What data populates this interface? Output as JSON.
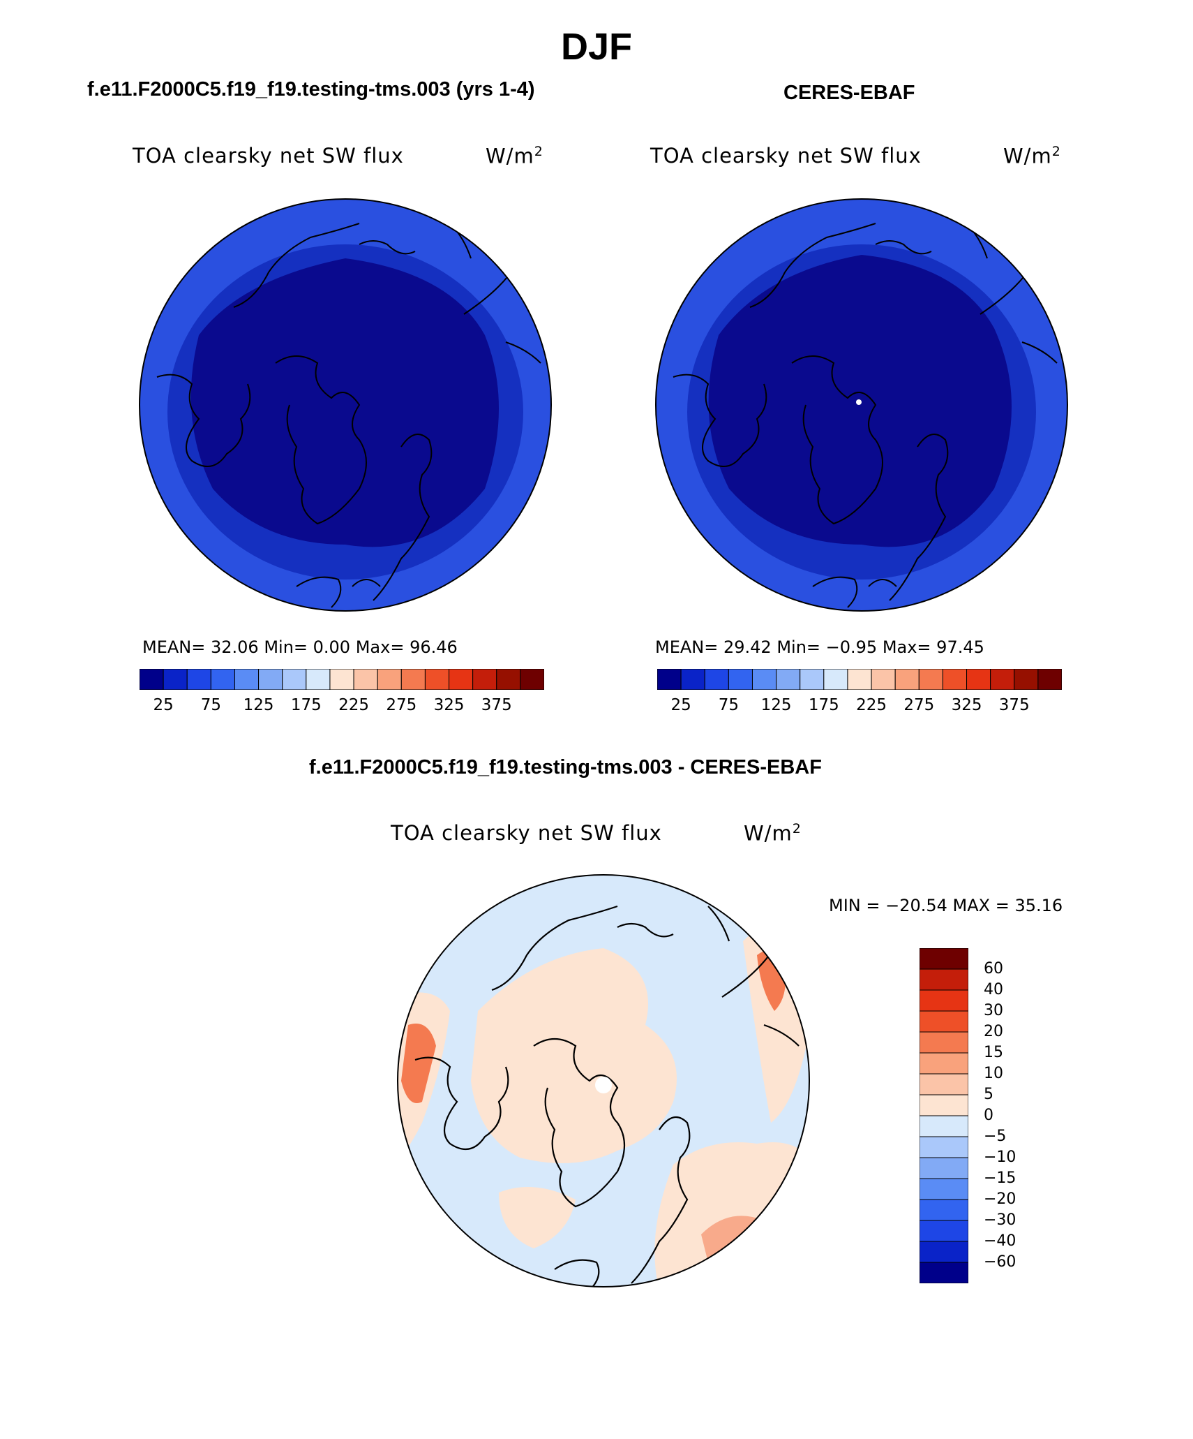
{
  "figure": {
    "title": "DJF",
    "panels": [
      {
        "title": "f.e11.F2000C5.f19_f19.testing-tms.003 (yrs 1-4)",
        "variable": "TOA clearsky net SW flux",
        "units": "W/m",
        "units_exp": "2",
        "stats": "MEAN=   32.06   Min=     0.00   Max=   96.46"
      },
      {
        "title": "CERES-EBAF",
        "variable": "TOA clearsky net SW flux",
        "units": "W/m",
        "units_exp": "2",
        "stats": "MEAN=   29.42   Min=   −0.95   Max=   97.45"
      },
      {
        "title": "f.e11.F2000C5.f19_f19.testing-tms.003 - CERES-EBAF",
        "variable": "TOA clearsky net SW flux",
        "units": "W/m",
        "units_exp": "2",
        "stats": "MIN = −20.54  MAX =   35.16"
      }
    ]
  },
  "colorbars": {
    "abs": {
      "colors": [
        "#00008a",
        "#0a23c8",
        "#1e46e6",
        "#3264f0",
        "#5a8cf5",
        "#82aaf5",
        "#aac8fa",
        "#d7e9fb",
        "#fde4d2",
        "#fbc4a8",
        "#f9a27c",
        "#f47a50",
        "#ee5028",
        "#e63414",
        "#c41e0a",
        "#961000",
        "#6e0000"
      ],
      "ticks": [
        "25",
        "75",
        "125",
        "175",
        "225",
        "275",
        "325",
        "375"
      ]
    },
    "diff": {
      "colors": [
        "#00008a",
        "#0a23c8",
        "#1e46e6",
        "#3264f0",
        "#5a8cf5",
        "#82aaf5",
        "#aac8fa",
        "#d7e9fb",
        "#fde4d2",
        "#fbc4a8",
        "#f9a27c",
        "#f47a50",
        "#ee5028",
        "#e63414",
        "#c41e0a",
        "#6e0000"
      ],
      "ticks": [
        "60",
        "40",
        "30",
        "20",
        "15",
        "10",
        "5",
        "0",
        "−5",
        "−10",
        "−15",
        "−20",
        "−30",
        "−40",
        "−60"
      ]
    }
  },
  "map_colors": {
    "deep": "#0a0a8e",
    "mid": "#1530c0",
    "outer": "#2a50e0",
    "diff_pos": "#fde4d2",
    "diff_neg": "#d7e9fb",
    "diff_hot": "#f47a50"
  }
}
